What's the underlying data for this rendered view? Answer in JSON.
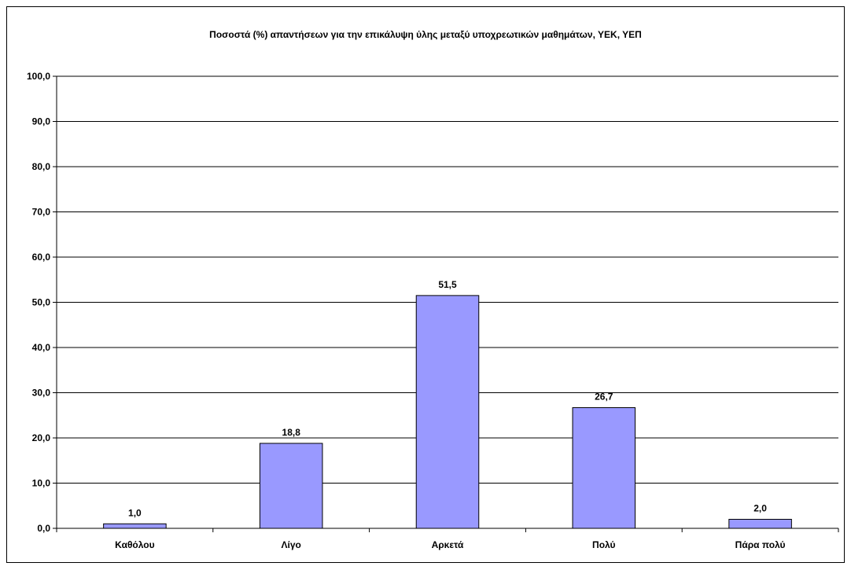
{
  "chart_data": {
    "type": "bar",
    "title": "Ποσοστά (%) απαντήσεων για την επικάλυψη ύλης μεταξύ υποχρεωτικών μαθημάτων, ΥΕΚ, ΥΕΠ",
    "xlabel": "",
    "ylabel": "",
    "categories": [
      "Καθόλου",
      "Λίγο",
      "Αρκετά",
      "Πολύ",
      "Πάρα πολύ"
    ],
    "values": [
      1.0,
      18.8,
      51.5,
      26.7,
      2.0
    ],
    "data_labels": [
      "1,0",
      "18,8",
      "51,5",
      "26,7",
      "2,0"
    ],
    "ylim": [
      0,
      100
    ],
    "yticks": [
      0,
      10,
      20,
      30,
      40,
      50,
      60,
      70,
      80,
      90,
      100
    ],
    "ytick_labels": [
      "0,0",
      "10,0",
      "20,0",
      "30,0",
      "40,0",
      "50,0",
      "60,0",
      "70,0",
      "80,0",
      "90,0",
      "100,0"
    ],
    "grid": true,
    "legend": "none",
    "bar_color": "#9999ff",
    "bar_edge_color": "#000000"
  }
}
